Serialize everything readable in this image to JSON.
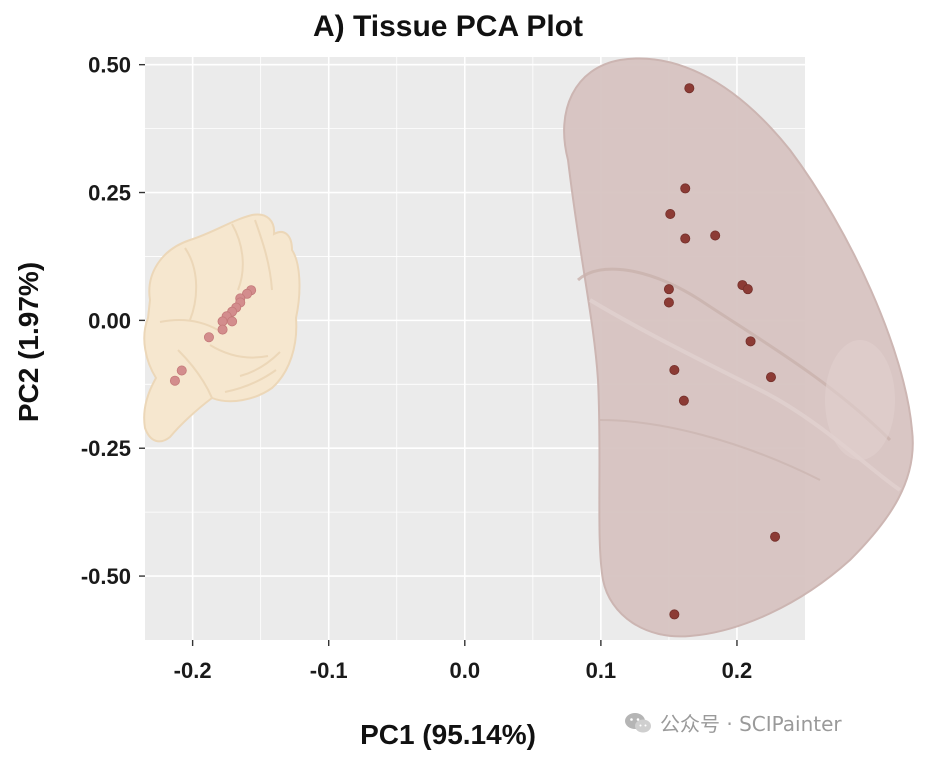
{
  "chart_data": {
    "type": "scatter",
    "title": "A) Tissue PCA Plot",
    "xlabel": "PC1 (95.14%)",
    "ylabel": "PC2 (1.97%)",
    "xlim": [
      -0.235,
      0.25
    ],
    "ylim": [
      -0.625,
      0.515
    ],
    "x_ticks": [
      -0.2,
      -0.1,
      0.0,
      0.1,
      0.2
    ],
    "x_tick_labels": [
      "-0.2",
      "-0.1",
      "0.0",
      "0.1",
      "0.2"
    ],
    "y_ticks": [
      0.5,
      0.25,
      0.0,
      -0.25,
      -0.5
    ],
    "y_tick_labels": [
      "0.50",
      "0.25",
      "0.00",
      "-0.25",
      "-0.50"
    ],
    "grid": true,
    "series": [
      {
        "color": "#d38d8d",
        "points": [
          {
            "x": -0.157,
            "y": 0.059
          },
          {
            "x": -0.16,
            "y": 0.052
          },
          {
            "x": -0.165,
            "y": 0.043
          },
          {
            "x": -0.165,
            "y": 0.035
          },
          {
            "x": -0.168,
            "y": 0.025
          },
          {
            "x": -0.171,
            "y": 0.017
          },
          {
            "x": -0.175,
            "y": 0.008
          },
          {
            "x": -0.171,
            "y": -0.002
          },
          {
            "x": -0.178,
            "y": -0.002
          },
          {
            "x": -0.178,
            "y": -0.018
          },
          {
            "x": -0.188,
            "y": -0.033
          },
          {
            "x": -0.208,
            "y": -0.098
          },
          {
            "x": -0.213,
            "y": -0.118
          }
        ]
      },
      {
        "color": "#8c3b35",
        "points": [
          {
            "x": 0.165,
            "y": 0.454
          },
          {
            "x": 0.162,
            "y": 0.258
          },
          {
            "x": 0.151,
            "y": 0.208
          },
          {
            "x": 0.162,
            "y": 0.16
          },
          {
            "x": 0.184,
            "y": 0.166
          },
          {
            "x": 0.15,
            "y": 0.061
          },
          {
            "x": 0.15,
            "y": 0.035
          },
          {
            "x": 0.204,
            "y": 0.069
          },
          {
            "x": 0.208,
            "y": 0.061
          },
          {
            "x": 0.21,
            "y": -0.041
          },
          {
            "x": 0.154,
            "y": -0.097
          },
          {
            "x": 0.225,
            "y": -0.111
          },
          {
            "x": 0.161,
            "y": -0.157
          },
          {
            "x": 0.228,
            "y": -0.423
          },
          {
            "x": 0.154,
            "y": -0.575
          }
        ]
      }
    ]
  },
  "watermark": {
    "icon": "wechat-icon",
    "text": "公众号 · SCIPainter"
  },
  "colors": {
    "panel_bg": "#ebebeb",
    "grid": "#ffffff",
    "brain_fill": "#f6e7cf",
    "brain_stroke": "#ecd7b8",
    "lung_fill": "#d7c4c1",
    "lung_stroke": "#cbb3af"
  }
}
